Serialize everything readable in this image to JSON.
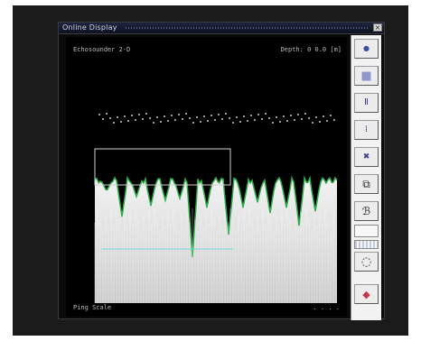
{
  "window": {
    "title": "Online Display",
    "close_glyph": "×"
  },
  "display": {
    "header_left": "Echosounder 2-D",
    "header_right": "Depth: 0  0.0 [m]",
    "footer_left": "Ping Scale",
    "footer_right": ". . . ."
  },
  "toolbar": {
    "buttons": [
      {
        "name": "record-icon",
        "glyph": "●"
      },
      {
        "name": "stop-icon",
        "glyph": "■"
      },
      {
        "name": "pause-icon",
        "glyph": "Ⅱ"
      },
      {
        "name": "step-icon",
        "glyph": "⁞"
      },
      {
        "name": "close-channel-icon",
        "glyph": "✖"
      },
      {
        "name": "zoom-frame-icon",
        "glyph": "⧉"
      },
      {
        "name": "settings-icon",
        "glyph": "ℬ"
      },
      {
        "name": "color-palette-icon",
        "glyph": "◌"
      },
      {
        "name": "eraser-icon",
        "glyph": "◆"
      }
    ]
  },
  "colors": {
    "background": "#1b1b1b",
    "echogram_white": "#e8e8e8",
    "bottom_trace": "#2fae4a",
    "cyan_line": "#57d6e0",
    "toolbar_glyph": "#3a3f88"
  }
}
